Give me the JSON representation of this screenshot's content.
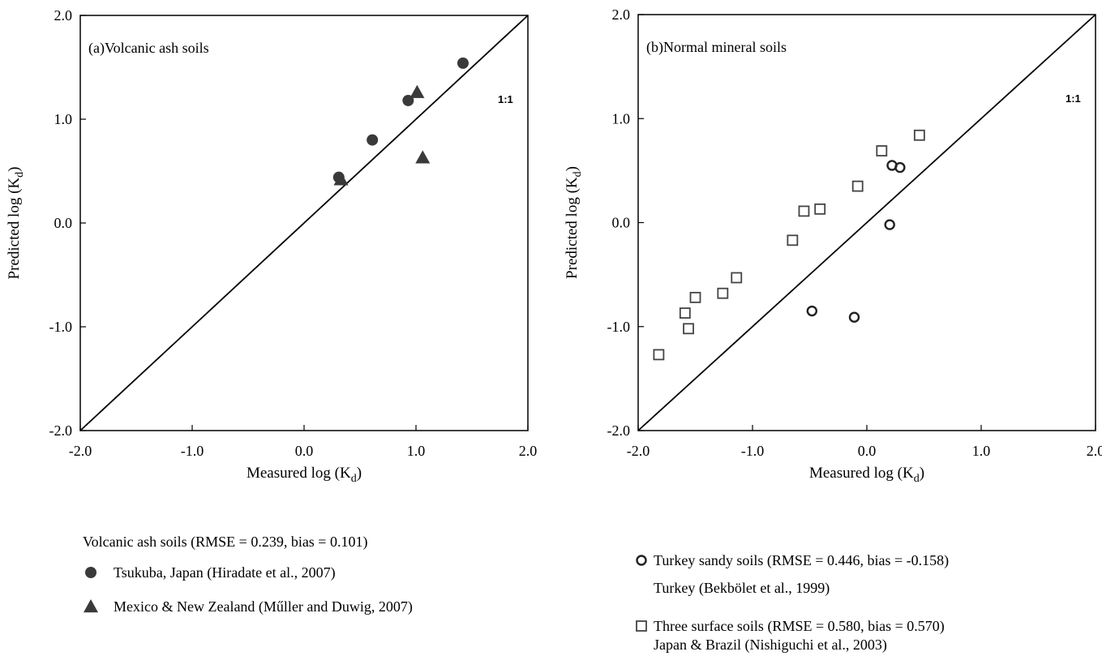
{
  "chart_data": [
    {
      "type": "scatter",
      "panel_label": "(a)Volcanic ash soils",
      "identity_line_label": "1:1",
      "xlabel": {
        "base": "Measured log (K",
        "sub": "d",
        "end": ")"
      },
      "ylabel": {
        "base": "Predicted log (K",
        "sub": "d",
        "end": ")"
      },
      "xlim": [
        -2.0,
        2.0
      ],
      "ylim": [
        -2.0,
        2.0
      ],
      "x_ticks": [
        -2.0,
        -1.0,
        0.0,
        1.0,
        2.0
      ],
      "y_ticks": [
        -2.0,
        -1.0,
        0.0,
        1.0,
        2.0
      ],
      "grid": false,
      "legend_title": "Volcanic ash soils (RMSE = 0.239, bias = 0.101)",
      "series": [
        {
          "name": "Tsukuba, Japan (Hiradate et al., 2007)",
          "marker": "filled-circle",
          "color": "#3a3a3a",
          "points": [
            [
              0.31,
              0.44
            ],
            [
              0.61,
              0.8
            ],
            [
              0.93,
              1.18
            ],
            [
              1.42,
              1.54
            ]
          ]
        },
        {
          "name": "Mexico & New Zealand (Műller and Duwig, 2007)",
          "marker": "filled-triangle",
          "color": "#3a3a3a",
          "points": [
            [
              0.33,
              0.42
            ],
            [
              1.01,
              1.26
            ],
            [
              1.06,
              0.63
            ]
          ]
        }
      ]
    },
    {
      "type": "scatter",
      "panel_label": "(b)Normal mineral soils",
      "identity_line_label": "1:1",
      "xlabel": {
        "base": "Measured log (K",
        "sub": "d",
        "end": ")"
      },
      "ylabel": {
        "base": "Predicted log (K",
        "sub": "d",
        "end": ")"
      },
      "xlim": [
        -2.0,
        2.0
      ],
      "ylim": [
        -2.0,
        2.0
      ],
      "x_ticks": [
        -2.0,
        -1.0,
        0.0,
        1.0,
        2.0
      ],
      "y_ticks": [
        -2.0,
        -1.0,
        0.0,
        1.0,
        2.0
      ],
      "grid": false,
      "series": [
        {
          "name": "Turkey sandy soils (RMSE = 0.446, bias = -0.158)",
          "subtitle": "Turkey (Bekbölet et al., 1999)",
          "marker": "open-circle",
          "color": "#222222",
          "points": [
            [
              0.22,
              0.55
            ],
            [
              0.29,
              0.53
            ],
            [
              0.2,
              -0.02
            ],
            [
              -0.48,
              -0.85
            ],
            [
              -0.11,
              -0.91
            ]
          ]
        },
        {
          "name": "Three surface soils (RMSE = 0.580, bias = 0.570)",
          "subtitle": "Japan  & Brazil (Nishiguchi et al., 2003)",
          "marker": "open-square",
          "color": "#444444",
          "points": [
            [
              -1.82,
              -1.27
            ],
            [
              -1.56,
              -1.02
            ],
            [
              -1.59,
              -0.87
            ],
            [
              -1.5,
              -0.72
            ],
            [
              -1.26,
              -0.68
            ],
            [
              -1.14,
              -0.53
            ],
            [
              -0.65,
              -0.17
            ],
            [
              -0.55,
              0.11
            ],
            [
              -0.41,
              0.13
            ],
            [
              -0.08,
              0.35
            ],
            [
              0.13,
              0.69
            ],
            [
              0.46,
              0.84
            ]
          ]
        }
      ]
    }
  ]
}
